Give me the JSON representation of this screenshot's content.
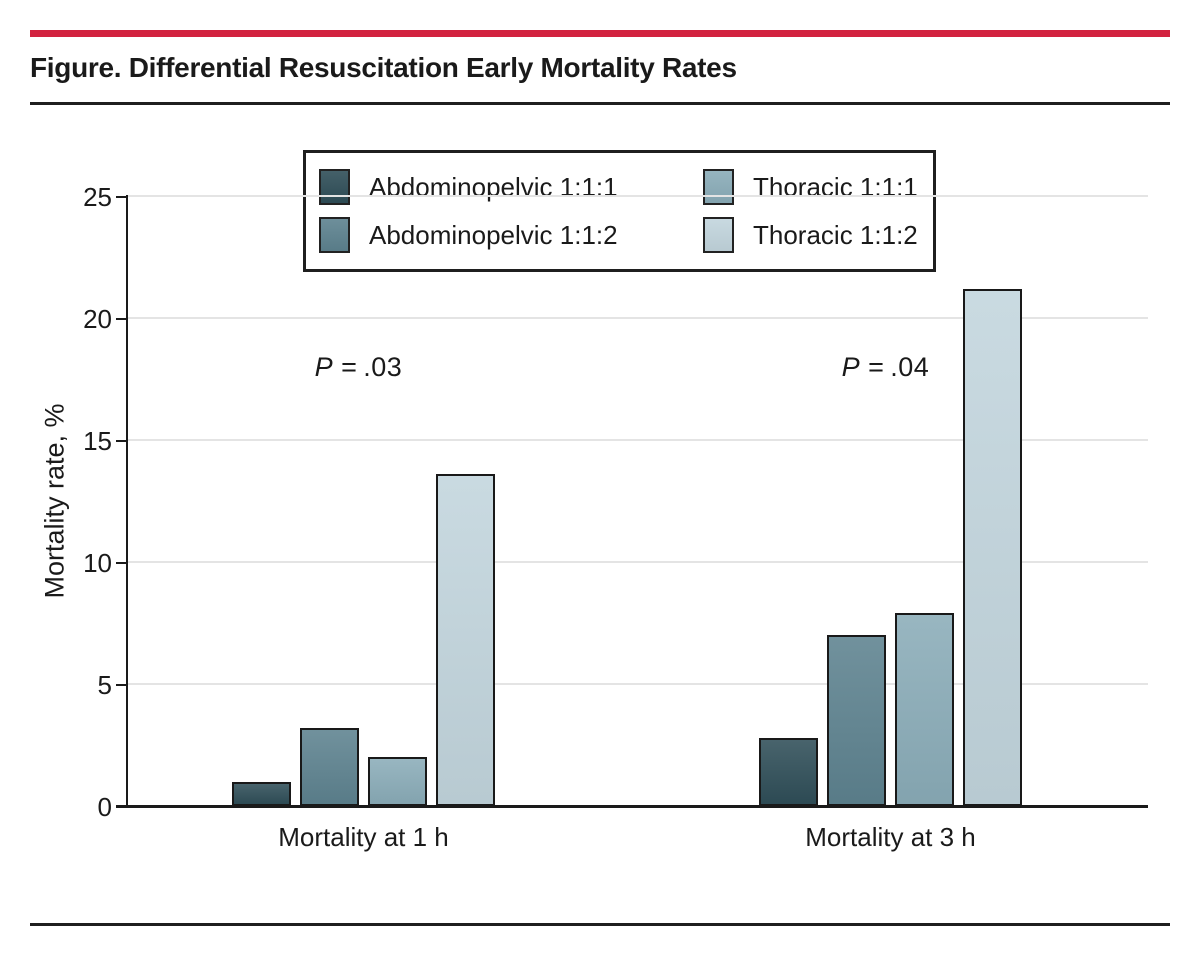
{
  "header": {
    "title": "Figure. Differential Resuscitation Early Mortality Rates",
    "accent_color": "#d2223f"
  },
  "chart_data": {
    "type": "bar",
    "title": "Figure. Differential Resuscitation Early Mortality Rates",
    "categories": [
      "Mortality at 1 h",
      "Mortality at 3 h"
    ],
    "series": [
      {
        "name": "Abdominopelvic 1:1:1",
        "color": "#2f4e58",
        "values": [
          1.0,
          2.8
        ]
      },
      {
        "name": "Abdominopelvic 1:1:2",
        "color": "#5d828f",
        "values": [
          3.2,
          7.0
        ]
      },
      {
        "name": "Thoracic 1:1:1",
        "color": "#8aacb8",
        "values": [
          2.0,
          7.9
        ]
      },
      {
        "name": "Thoracic 1:1:2",
        "color": "#c2d5dd",
        "values": [
          13.6,
          21.2
        ]
      }
    ],
    "annotations": [
      {
        "var": "P",
        "rest": " = .03",
        "category_index": 0
      },
      {
        "var": "P",
        "rest": " = .04",
        "category_index": 1
      }
    ],
    "xlabel": "",
    "ylabel": "Mortality rate, %",
    "ylim": [
      0,
      25
    ],
    "yticks": [
      0,
      5,
      10,
      15,
      20,
      25
    ],
    "grid": true,
    "legend_position": "top-center",
    "axis_color": "#1a1a1a",
    "gridline_color": "#e4e4e4"
  }
}
